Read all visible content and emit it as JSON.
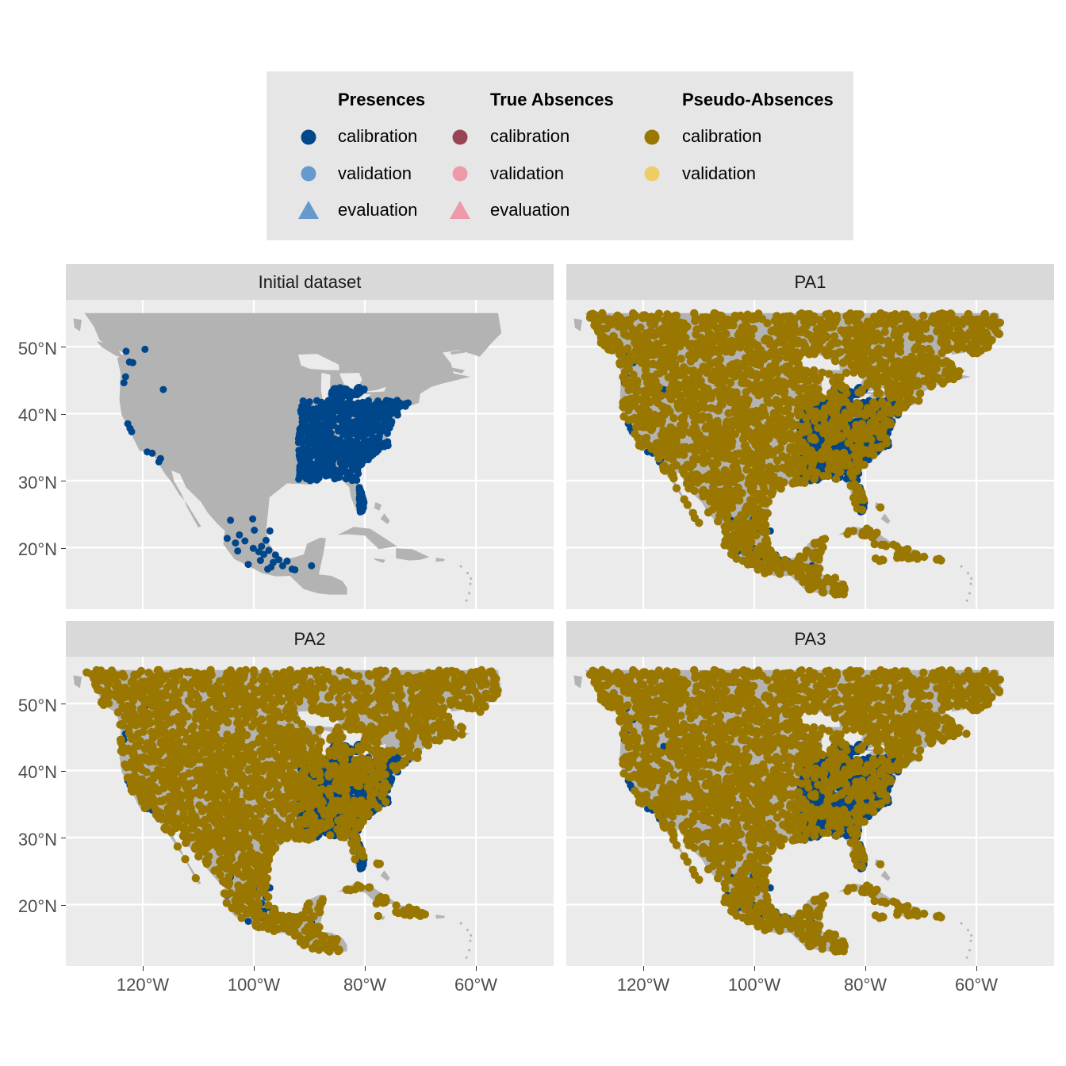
{
  "legend": {
    "groups": [
      {
        "title": "Presences",
        "items": [
          {
            "label": "calibration",
            "color": "#00468B",
            "shape": "circle"
          },
          {
            "label": "validation",
            "color": "#6699CC",
            "shape": "circle"
          },
          {
            "label": "evaluation",
            "color": "#6699CC",
            "shape": "triangle"
          }
        ]
      },
      {
        "title": "True Absences",
        "items": [
          {
            "label": "calibration",
            "color": "#994455",
            "shape": "circle"
          },
          {
            "label": "validation",
            "color": "#EE99AA",
            "shape": "circle"
          },
          {
            "label": "evaluation",
            "color": "#EE99AA",
            "shape": "triangle"
          }
        ]
      },
      {
        "title": "Pseudo-Absences",
        "items": [
          {
            "label": "calibration",
            "color": "#997700",
            "shape": "circle"
          },
          {
            "label": "validation",
            "color": "#EECC66",
            "shape": "circle"
          }
        ]
      }
    ]
  },
  "colors": {
    "land": "#b3b3b3",
    "panel_background": "#ebebeb",
    "strip_background": "#d9d9d9",
    "grid": "#ffffff",
    "presence_calibration": "#00468B",
    "pseudo_absence_calibration": "#997700"
  },
  "chart_data": {
    "type": "scatter",
    "map": "North America, Central America and the Caribbean",
    "facets": [
      "Initial dataset",
      "PA1",
      "PA2",
      "PA3"
    ],
    "xlim": [
      -134,
      -46
    ],
    "ylim": [
      11,
      57
    ],
    "x_ticks": [
      -120,
      -100,
      -80,
      -60
    ],
    "x_tick_labels": [
      "120°W",
      "100°W",
      "80°W",
      "60°W"
    ],
    "y_ticks": [
      20,
      30,
      40,
      50
    ],
    "y_tick_labels": [
      "20°N",
      "30°N",
      "40°N",
      "50°N"
    ],
    "xlabel": "",
    "ylabel": "",
    "grid": true,
    "legend_position": "top",
    "presence_points": [
      [
        -123,
        49.3
      ],
      [
        -121.8,
        47.6
      ],
      [
        -122.4,
        47.7
      ],
      [
        -119.6,
        49.6
      ],
      [
        -123.1,
        45.5
      ],
      [
        -123.4,
        44.6
      ],
      [
        -116.3,
        43.6
      ],
      [
        -122.7,
        38.5
      ],
      [
        -122.3,
        37.8
      ],
      [
        -122,
        37.3
      ],
      [
        -119.2,
        34.3
      ],
      [
        -118.3,
        34.1
      ],
      [
        -117.1,
        32.8
      ],
      [
        -116.8,
        33.3
      ],
      [
        -104.2,
        24.1
      ],
      [
        -102.6,
        21.9
      ],
      [
        -100.2,
        24.3
      ],
      [
        -103.3,
        20.7
      ],
      [
        -104.8,
        21.4
      ],
      [
        -101.6,
        21
      ],
      [
        -99.1,
        19.4
      ],
      [
        -98.2,
        19
      ],
      [
        -97.3,
        19.6
      ],
      [
        -96.9,
        17.1
      ],
      [
        -96.1,
        18.9
      ],
      [
        -94.8,
        17.3
      ],
      [
        -93.1,
        16.8
      ],
      [
        -92.6,
        16.7
      ],
      [
        -97.8,
        21.1
      ],
      [
        -98.6,
        20.2
      ],
      [
        -100.1,
        19.9
      ],
      [
        -102.9,
        19.5
      ],
      [
        -96.5,
        17.8
      ],
      [
        -95.5,
        18.2
      ],
      [
        -89.6,
        17.3
      ],
      [
        -97.1,
        22.5
      ],
      [
        -99.9,
        22.6
      ],
      [
        -98.8,
        18.1
      ],
      [
        -101,
        17.5
      ],
      [
        -94,
        18
      ],
      [
        -97.5,
        16.8
      ]
    ],
    "presence_clusters": [
      {
        "lon": [
          -92,
          -72
        ],
        "lat": [
          30,
          42
        ]
      },
      {
        "lon": [
          -86,
          -80
        ],
        "lat": [
          42,
          44
        ]
      },
      {
        "lon": [
          -81,
          -79
        ],
        "lat": [
          25,
          30
        ]
      }
    ],
    "pseudo_absence_extent": {
      "lon": [
        -131,
        -53
      ],
      "lat": [
        13,
        55
      ]
    }
  },
  "strips": {
    "initial": "Initial dataset",
    "pa1": "PA1",
    "pa2": "PA2",
    "pa3": "PA3"
  },
  "axes": {
    "y_left_top": [
      "50°N",
      "40°N",
      "30°N",
      "20°N"
    ],
    "y_left_bottom": [
      "50°N",
      "40°N",
      "30°N",
      "20°N"
    ],
    "x_bottom_left": [
      "120°W",
      "100°W",
      "80°W",
      "60°W"
    ],
    "x_bottom_right": [
      "120°W",
      "100°W",
      "80°W",
      "60°W"
    ]
  }
}
